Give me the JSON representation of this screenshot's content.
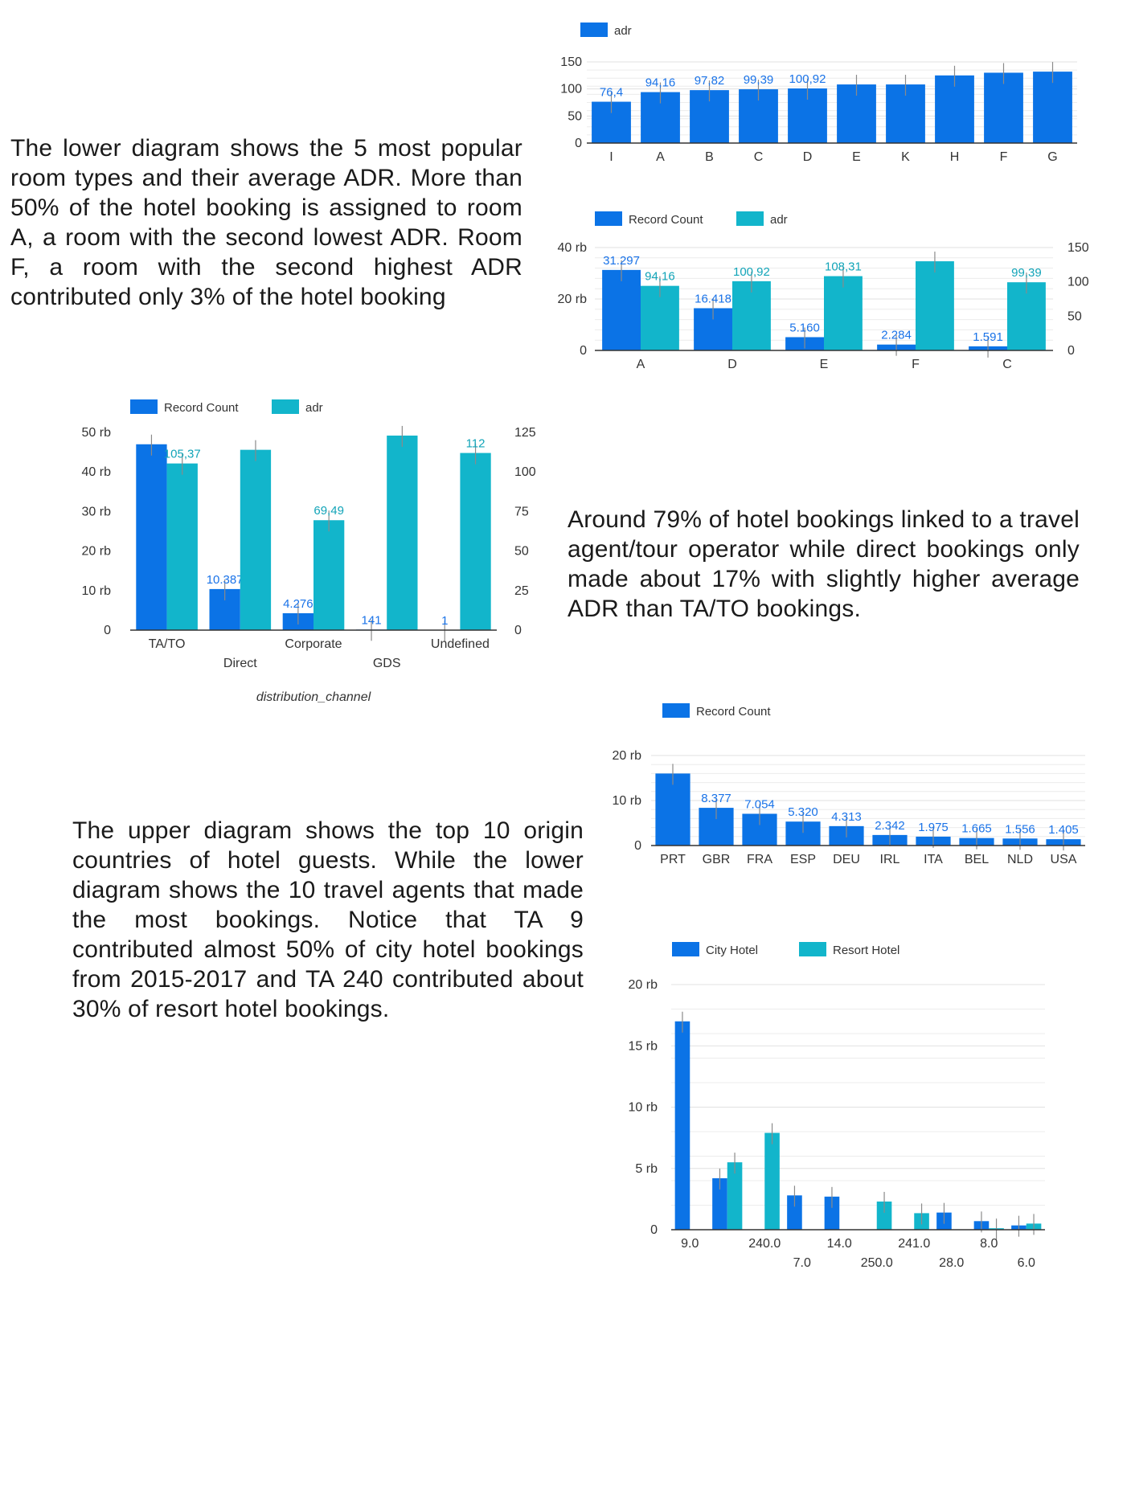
{
  "texts": {
    "p1": "The lower diagram shows the 5 most popular room types and their average ADR. More than 50% of the hotel booking is assigned to room A, a room with the second lowest ADR. Room F, a room with the second highest ADR contributed only 3% of the hotel booking",
    "p2": "Around 79% of hotel bookings linked to a travel agent/tour operator while direct bookings only made about 17% with slightly higher average ADR than TA/TO bookings.",
    "p3": "The upper diagram shows the top 10 origin countries of hotel guests. While the lower diagram shows the 10 travel agents that made the most bookings. Notice that TA 9 contributed almost 50% of city hotel bookings from 2015-2017 and TA 240 contributed about 30% of resort hotel bookings."
  },
  "colors": {
    "blue": "#0b73e6",
    "teal": "#12b5cb",
    "label_blue": "#1a73e8",
    "label_teal": "#12a4b8",
    "grid": "#e0e0e0",
    "axis": "#333333"
  },
  "chart_data": [
    {
      "id": "c1",
      "type": "bar",
      "categories": [
        "I",
        "A",
        "B",
        "C",
        "D",
        "E",
        "K",
        "H",
        "F",
        "G"
      ],
      "series": [
        {
          "name": "adr",
          "values": [
            76.4,
            94.16,
            97.82,
            99.39,
            100.92,
            108.31,
            108.31,
            125.0,
            130.0,
            132.0
          ],
          "labels": [
            "76,4",
            "94,16",
            "97,82",
            "99,39",
            "100,92",
            "",
            "",
            "",
            "",
            ""
          ]
        }
      ],
      "ylim": [
        0,
        150
      ],
      "yticks": [
        {
          "v": 0,
          "t": "0"
        },
        {
          "v": 50,
          "t": "50"
        },
        {
          "v": 100,
          "t": "100"
        },
        {
          "v": 150,
          "t": "150"
        }
      ],
      "legend": "top-left",
      "grid": true
    },
    {
      "id": "c2",
      "type": "bar",
      "categories": [
        "A",
        "D",
        "E",
        "F",
        "C"
      ],
      "series": [
        {
          "name": "Record Count",
          "axis": "left",
          "values": [
            31297,
            16418,
            5160,
            2284,
            1591
          ],
          "labels": [
            "31.297",
            "16.418",
            "5.160",
            "2.284",
            "1.591"
          ]
        },
        {
          "name": "adr",
          "axis": "right",
          "values": [
            94.16,
            100.92,
            108.31,
            130.0,
            99.39
          ],
          "labels": [
            "94,16",
            "100,92",
            "108,31",
            "",
            "99,39"
          ]
        }
      ],
      "ylim_left": [
        0,
        40000
      ],
      "yticks_left": [
        {
          "v": 0,
          "t": "0"
        },
        {
          "v": 20000,
          "t": "20 rb"
        },
        {
          "v": 40000,
          "t": "40 rb"
        }
      ],
      "ylim_right": [
        0,
        150
      ],
      "yticks_right": [
        {
          "v": 0,
          "t": "0"
        },
        {
          "v": 50,
          "t": "50"
        },
        {
          "v": 100,
          "t": "100"
        },
        {
          "v": 150,
          "t": "150"
        }
      ],
      "legend": "top-left",
      "grid": true
    },
    {
      "id": "c3",
      "type": "bar",
      "categories": [
        "TA/TO",
        "Direct",
        "Corporate",
        "GDS",
        "Undefined"
      ],
      "xlabel": "distribution_channel",
      "series": [
        {
          "name": "Record Count",
          "axis": "left",
          "values": [
            47000,
            10387,
            4276,
            141,
            1
          ],
          "labels": [
            "",
            "10.387",
            "4.276",
            "141",
            "1"
          ]
        },
        {
          "name": "adr",
          "axis": "right",
          "values": [
            105.37,
            114.0,
            69.49,
            123.0,
            112
          ],
          "labels": [
            "105,37",
            "",
            "69,49",
            "",
            "112"
          ]
        }
      ],
      "ylim_left": [
        0,
        50000
      ],
      "yticks_left": [
        {
          "v": 0,
          "t": "0"
        },
        {
          "v": 10000,
          "t": "10 rb"
        },
        {
          "v": 20000,
          "t": "20 rb"
        },
        {
          "v": 30000,
          "t": "30 rb"
        },
        {
          "v": 40000,
          "t": "40 rb"
        },
        {
          "v": 50000,
          "t": "50 rb"
        }
      ],
      "ylim_right": [
        0,
        125
      ],
      "yticks_right": [
        {
          "v": 0,
          "t": "0"
        },
        {
          "v": 25,
          "t": "25"
        },
        {
          "v": 50,
          "t": "50"
        },
        {
          "v": 75,
          "t": "75"
        },
        {
          "v": 100,
          "t": "100"
        },
        {
          "v": 125,
          "t": "125"
        }
      ],
      "legend": "top-left",
      "grid": false
    },
    {
      "id": "c4",
      "type": "bar",
      "categories": [
        "PRT",
        "GBR",
        "FRA",
        "ESP",
        "DEU",
        "IRL",
        "ITA",
        "BEL",
        "NLD",
        "USA"
      ],
      "series": [
        {
          "name": "Record Count",
          "values": [
            16000,
            8377,
            7054,
            5320,
            4313,
            2342,
            1975,
            1665,
            1556,
            1405
          ],
          "labels": [
            "",
            "8.377",
            "7.054",
            "5.320",
            "4.313",
            "2.342",
            "1.975",
            "1.665",
            "1.556",
            "1.405"
          ]
        }
      ],
      "ylim": [
        0,
        20000
      ],
      "yticks": [
        {
          "v": 0,
          "t": "0"
        },
        {
          "v": 10000,
          "t": "10 rb"
        },
        {
          "v": 20000,
          "t": "20 rb"
        }
      ],
      "legend": "top-left",
      "grid": true
    },
    {
      "id": "c5",
      "type": "bar",
      "categories": [
        "9.0",
        "7.0",
        "240.0",
        "7.0",
        "14.0",
        "250.0",
        "241.0",
        "28.0",
        "8.0",
        "6.0"
      ],
      "category_labels": [
        "9.0",
        "",
        "240.0",
        "7.0",
        "14.0",
        "250.0",
        "241.0",
        "28.0",
        "8.0",
        "6.0"
      ],
      "series": [
        {
          "name": "City Hotel",
          "values": [
            17000,
            4200,
            0,
            2800,
            2700,
            0,
            0,
            1400,
            700,
            350
          ]
        },
        {
          "name": "Resort Hotel",
          "values": [
            0,
            5500,
            7900,
            0,
            0,
            2300,
            1350,
            0,
            120,
            500
          ]
        }
      ],
      "ylim": [
        0,
        20000
      ],
      "yticks": [
        {
          "v": 0,
          "t": "0"
        },
        {
          "v": 5000,
          "t": "5 rb"
        },
        {
          "v": 10000,
          "t": "10 rb"
        },
        {
          "v": 15000,
          "t": "15 rb"
        },
        {
          "v": 20000,
          "t": "20 rb"
        }
      ],
      "legend": "top-left",
      "grid": true
    }
  ]
}
